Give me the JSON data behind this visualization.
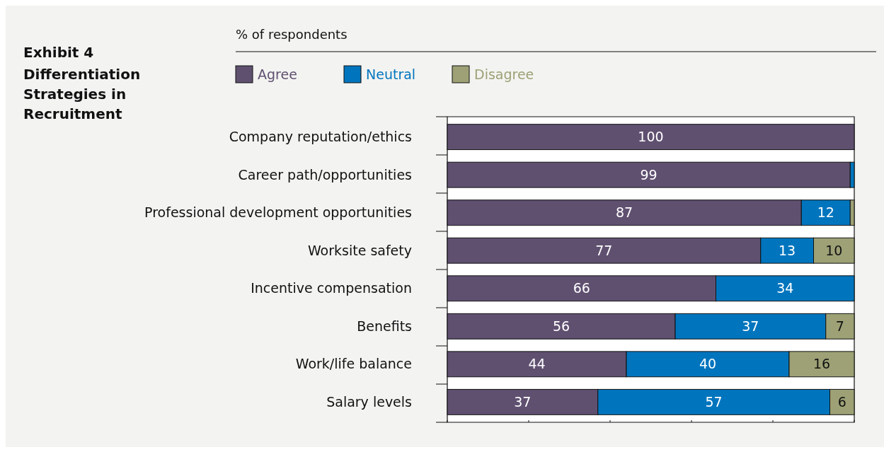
{
  "chart_data": {
    "type": "bar",
    "orientation": "horizontal",
    "stacked": true,
    "title": "Exhibit 4",
    "subtitle": "Differentiation Strategies in Recruitment",
    "annotations": [
      "% of respondents"
    ],
    "categories": [
      "Company reputation/ethics",
      "Career path/opportunities",
      "Professional development opportunities",
      "Worksite safety",
      "Incentive compensation",
      "Benefits",
      "Work/life balance",
      "Salary levels"
    ],
    "series": [
      {
        "name": "Agree",
        "color": "#5f5070",
        "values": [
          100,
          99,
          87,
          77,
          66,
          56,
          44,
          37
        ],
        "value_labels": [
          "100",
          "99",
          "87",
          "77",
          "66",
          "56",
          "44",
          "37"
        ]
      },
      {
        "name": "Neutral",
        "color": "#0075be",
        "values": [
          null,
          1,
          12,
          13,
          34,
          37,
          40,
          57
        ],
        "value_labels": [
          null,
          null,
          "12",
          "13",
          "34",
          "37",
          "40",
          "57"
        ]
      },
      {
        "name": "Disagree",
        "color": "#9da175",
        "values": [
          null,
          null,
          1,
          10,
          null,
          7,
          16,
          6
        ],
        "value_labels": [
          null,
          null,
          null,
          "10",
          null,
          "7",
          "16",
          "6"
        ]
      }
    ],
    "xlim": [
      0,
      100
    ],
    "xticks": [
      {
        "value": 0,
        "label": null
      },
      {
        "value": 20,
        "label": null
      },
      {
        "value": 40,
        "label": null
      },
      {
        "value": 60,
        "label": null
      },
      {
        "value": 80,
        "label": null
      },
      {
        "value": 100,
        "label": null
      }
    ],
    "tick_labels": "y",
    "legend": "top",
    "grid": false
  }
}
